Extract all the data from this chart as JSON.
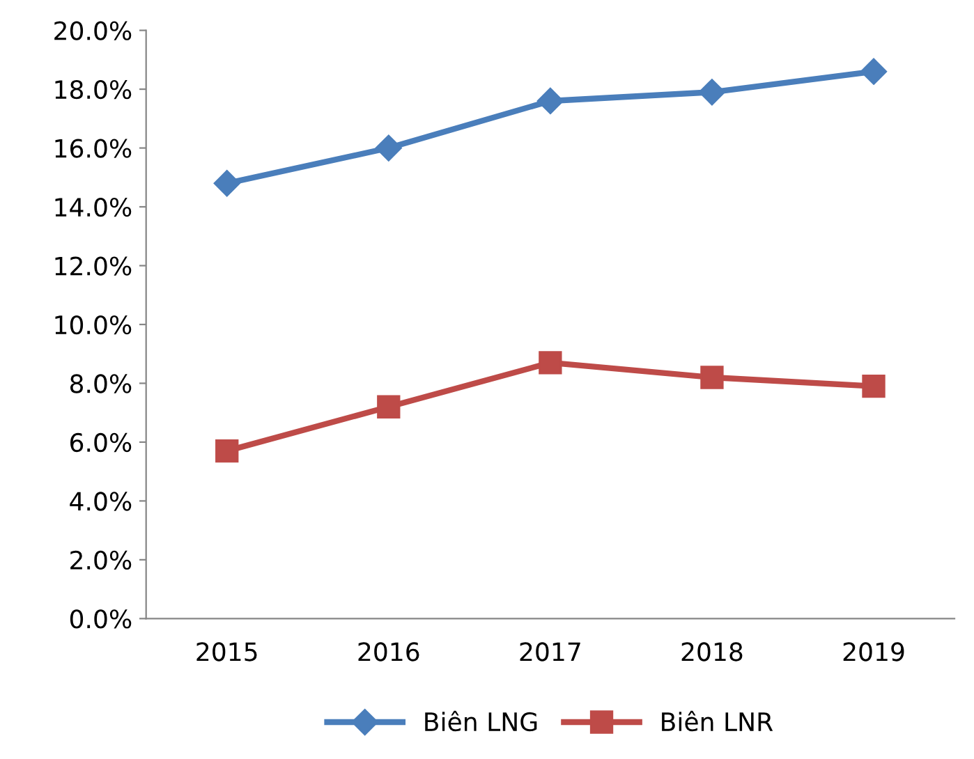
{
  "chart_data": {
    "type": "line",
    "categories": [
      "2015",
      "2016",
      "2017",
      "2018",
      "2019"
    ],
    "series": [
      {
        "name": "Biên LNG",
        "color": "#4a7ebb",
        "marker": "diamond",
        "values": [
          14.8,
          16.0,
          17.6,
          17.9,
          18.6
        ]
      },
      {
        "name": "Biên LNR",
        "color": "#be4b48",
        "marker": "square",
        "values": [
          5.7,
          7.2,
          8.7,
          8.2,
          7.9
        ]
      }
    ],
    "ylim": [
      0,
      20
    ],
    "yticks": [
      {
        "value": 0,
        "label": "0.0%"
      },
      {
        "value": 2,
        "label": "2.0%"
      },
      {
        "value": 4,
        "label": "4.0%"
      },
      {
        "value": 6,
        "label": "6.0%"
      },
      {
        "value": 8,
        "label": "8.0%"
      },
      {
        "value": 10,
        "label": "10.0%"
      },
      {
        "value": 12,
        "label": "12.0%"
      },
      {
        "value": 14,
        "label": "14.0%"
      },
      {
        "value": 16,
        "label": "16.0%"
      },
      {
        "value": 18,
        "label": "18.0%"
      },
      {
        "value": 20,
        "label": "20.0%"
      }
    ],
    "grid": false,
    "legend": "bottom",
    "line_style": "solid"
  }
}
